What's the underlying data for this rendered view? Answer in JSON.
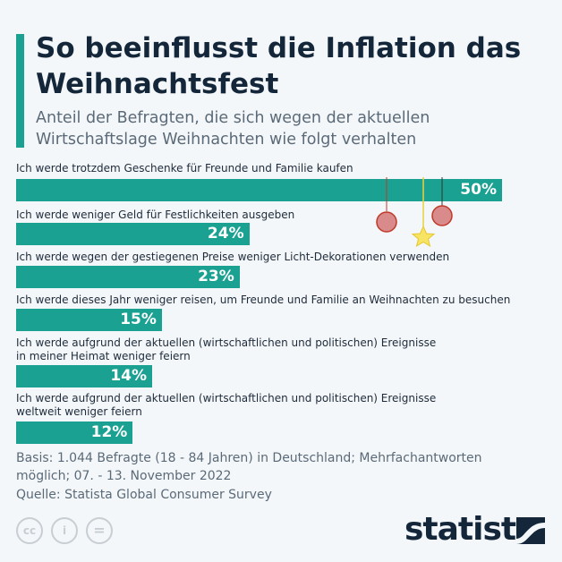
{
  "title": "So beeinflusst die Inflation das Weihnachtsfest",
  "subtitle": "Anteil der Befragten, die sich wegen der aktuellen Wirtschaftslage Weihnachten wie folgt verhalten",
  "chart_data": {
    "type": "bar",
    "orientation": "horizontal",
    "categories": [
      "Ich werde trotzdem Geschenke für Freunde und Familie kaufen",
      "Ich werde weniger Geld für Festlichkeiten ausgeben",
      "Ich werde wegen der gestiegenen Preise weniger Licht-Dekorationen verwenden",
      "Ich werde dieses Jahr weniger reisen, um Freunde und Familie an Weihnachten zu besuchen",
      "Ich werde aufgrund der aktuellen (wirtschaftlichen und politischen) Ereignisse in meiner Heimat weniger feiern",
      "Ich werde aufgrund der aktuellen (wirtschaftlichen und politischen) Ereignisse weltweit weniger feiern"
    ],
    "values": [
      50,
      24,
      23,
      15,
      14,
      12
    ],
    "labels": [
      "50%",
      "24%",
      "23%",
      "15%",
      "14%",
      "12%"
    ],
    "unit": "%",
    "xlim": [
      0,
      50
    ],
    "color": "#1aa192"
  },
  "footer": {
    "basis": "Basis: 1.044 Befragte (18 - 84 Jahren) in Deutschland; Mehrfachantworten möglich; 07. - 13. November 2022",
    "source": "Quelle: Statista Global Consumer Survey"
  },
  "license_icons": [
    "cc",
    "by",
    "nd"
  ],
  "license_text": {
    "cc": "cc",
    "by": "i",
    "nd": "="
  },
  "logo": "statista"
}
